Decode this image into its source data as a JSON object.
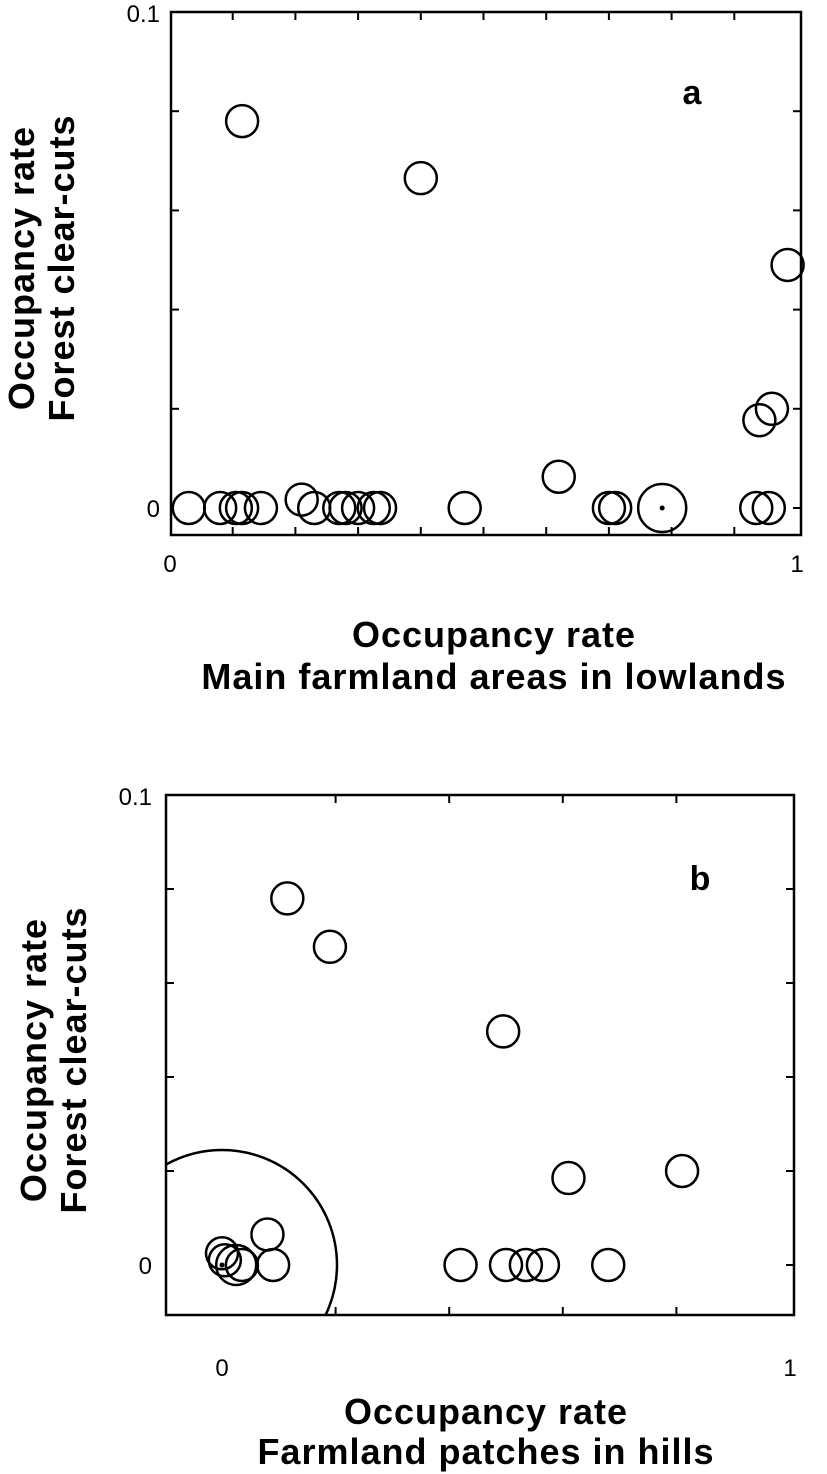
{
  "chart_data": [
    {
      "type": "scatter",
      "panel_label": "a",
      "xlabel_lines": [
        "Occupancy  rate",
        "Main  farmland  areas  in  lowlands"
      ],
      "ylabel_lines": [
        "Occupancy  rate",
        "Forest  clear-cuts"
      ],
      "xlim": [
        0,
        1
      ],
      "ylim": [
        0,
        0.1
      ],
      "x_ticks": [
        {
          "value": 0,
          "label": "0"
        },
        {
          "value": 1,
          "label": "1"
        }
      ],
      "y_ticks": [
        {
          "value": 0,
          "label": "0"
        },
        {
          "value": 0.1,
          "label": "0.1"
        }
      ],
      "points": [
        {
          "x": 0.115,
          "y": 0.078,
          "size": 1
        },
        {
          "x": 0.4,
          "y": 0.0665,
          "size": 1
        },
        {
          "x": 0.985,
          "y": 0.049,
          "size": 1
        },
        {
          "x": 0.96,
          "y": 0.02,
          "size": 1
        },
        {
          "x": 0.94,
          "y": 0.0177,
          "size": 1
        },
        {
          "x": 0.62,
          "y": 0.0063,
          "size": 1
        },
        {
          "x": 0.21,
          "y": 0.0017,
          "size": 1
        },
        {
          "x": 0.03,
          "y": 0,
          "size": 1
        },
        {
          "x": 0.08,
          "y": 0,
          "size": 1
        },
        {
          "x": 0.105,
          "y": 0,
          "size": 1
        },
        {
          "x": 0.115,
          "y": 0,
          "size": 1
        },
        {
          "x": 0.145,
          "y": 0,
          "size": 1
        },
        {
          "x": 0.23,
          "y": 0,
          "size": 1
        },
        {
          "x": 0.27,
          "y": 0,
          "size": 1
        },
        {
          "x": 0.28,
          "y": 0,
          "size": 1
        },
        {
          "x": 0.3,
          "y": 0,
          "size": 1
        },
        {
          "x": 0.325,
          "y": 0,
          "size": 1
        },
        {
          "x": 0.335,
          "y": 0,
          "size": 1
        },
        {
          "x": 0.47,
          "y": 0,
          "size": 1
        },
        {
          "x": 0.7,
          "y": 0,
          "size": 1
        },
        {
          "x": 0.71,
          "y": 0,
          "size": 1
        },
        {
          "x": 0.785,
          "y": 0,
          "size": 2,
          "center_dot": true
        },
        {
          "x": 0.935,
          "y": 0,
          "size": 1
        },
        {
          "x": 0.955,
          "y": 0,
          "size": 1
        }
      ]
    },
    {
      "type": "scatter",
      "panel_label": "b",
      "xlabel_lines": [
        "Occupancy  rate",
        "Farmland  patches  in  hills"
      ],
      "ylabel_lines": [
        "Occupancy  rate",
        "Forest  clear-cuts"
      ],
      "xlim": [
        -0.1,
        1
      ],
      "ylim": [
        -0.0077,
        0.1
      ],
      "x_ticks": [
        {
          "value": 0,
          "label": "0"
        },
        {
          "value": 1,
          "label": "1"
        }
      ],
      "y_ticks": [
        {
          "value": 0,
          "label": "0"
        },
        {
          "value": 0.1,
          "label": "0.1"
        }
      ],
      "points": [
        {
          "x": 0.115,
          "y": 0.078,
          "size": 1
        },
        {
          "x": 0.19,
          "y": 0.0677,
          "size": 1
        },
        {
          "x": 0.495,
          "y": 0.0497,
          "size": 1
        },
        {
          "x": 0.61,
          "y": 0.0185,
          "size": 1
        },
        {
          "x": 0.81,
          "y": 0.02,
          "size": 1
        },
        {
          "x": 0.08,
          "y": 0.0065,
          "size": 1
        },
        {
          "x": 0.0,
          "y": 0.0025,
          "size": 1
        },
        {
          "x": 0.005,
          "y": 0.001,
          "size": 1
        },
        {
          "x": 0.025,
          "y": 0,
          "size": 1.6
        },
        {
          "x": 0.035,
          "y": 0,
          "size": 1
        },
        {
          "x": 0.09,
          "y": 0,
          "size": 1
        },
        {
          "x": 0.0,
          "y": 0,
          "size": 10,
          "center_dot": true
        },
        {
          "x": 0.42,
          "y": 0,
          "size": 1
        },
        {
          "x": 0.5,
          "y": 0,
          "size": 1
        },
        {
          "x": 0.535,
          "y": 0,
          "size": 1
        },
        {
          "x": 0.565,
          "y": 0,
          "size": 1
        },
        {
          "x": 0.68,
          "y": 0,
          "size": 1
        }
      ]
    }
  ]
}
